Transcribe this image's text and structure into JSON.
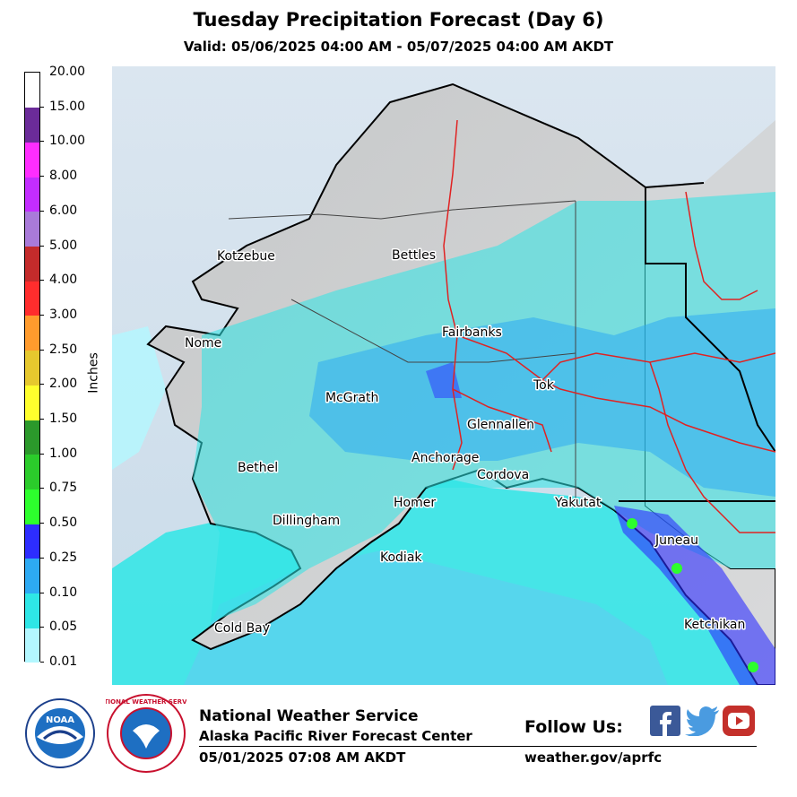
{
  "header": {
    "title": "Tuesday Precipitation Forecast (Day 6)",
    "valid": "Valid: 05/06/2025 04:00 AM - 05/07/2025 04:00 AM AKDT"
  },
  "legend": {
    "units": "Inches",
    "bins": [
      {
        "label": "0.01",
        "color": "#b3f7ff"
      },
      {
        "label": "0.05",
        "color": "#2ee6e6"
      },
      {
        "label": "0.10",
        "color": "#2daaf3"
      },
      {
        "label": "0.25",
        "color": "#2d2dff"
      },
      {
        "label": "0.50",
        "color": "#2dff2d"
      },
      {
        "label": "0.75",
        "color": "#2bcc2b"
      },
      {
        "label": "1.00",
        "color": "#2b992b"
      },
      {
        "label": "1.50",
        "color": "#ffff2d"
      },
      {
        "label": "2.00",
        "color": "#e6c82e"
      },
      {
        "label": "2.50",
        "color": "#ff9b2d"
      },
      {
        "label": "3.00",
        "color": "#ff2d2d"
      },
      {
        "label": "4.00",
        "color": "#c42b2b"
      },
      {
        "label": "5.00",
        "color": "#a97ad9"
      },
      {
        "label": "6.00",
        "color": "#c32dff"
      },
      {
        "label": "8.00",
        "color": "#ff2dff"
      },
      {
        "label": "10.00",
        "color": "#6b2b99"
      },
      {
        "label": "15.00",
        "color": "#ffffff"
      }
    ],
    "top_label": "20.00"
  },
  "cities": [
    {
      "name": "Kotzebue"
    },
    {
      "name": "Bettles"
    },
    {
      "name": "Nome"
    },
    {
      "name": "Fairbanks"
    },
    {
      "name": "McGrath"
    },
    {
      "name": "Tok"
    },
    {
      "name": "Glennallen"
    },
    {
      "name": "Anchorage"
    },
    {
      "name": "Cordova"
    },
    {
      "name": "Bethel"
    },
    {
      "name": "Homer"
    },
    {
      "name": "Yakutat"
    },
    {
      "name": "Dillingham"
    },
    {
      "name": "Juneau"
    },
    {
      "name": "Kodiak"
    },
    {
      "name": "Cold Bay"
    },
    {
      "name": "Ketchikan"
    }
  ],
  "footer": {
    "org": "National Weather Service",
    "office": "Alaska Pacific River Forecast Center",
    "issued": "05/01/2025 07:08 AM AKDT",
    "follow": "Follow Us:",
    "website": "weather.gov/aprfc"
  },
  "logos": {
    "noaa_text": "NOAA",
    "nws_ring": "NATIONAL WEATHER SERVICE"
  },
  "icons": [
    "facebook-icon",
    "twitter-icon",
    "youtube-icon"
  ]
}
